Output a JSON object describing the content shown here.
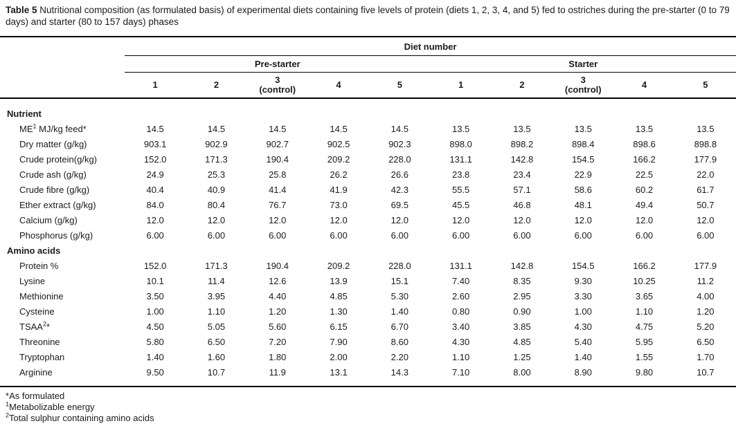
{
  "caption": {
    "label": "Table 5",
    "text": " Nutritional composition (as formulated basis) of experimental diets containing five levels of protein (diets 1, 2, 3, 4, and 5) fed to ostriches during the pre-starter (0 to 79 days) and starter (80 to 157 days) phases"
  },
  "table": {
    "top_header": "Diet number",
    "groups": [
      {
        "label": "Pre-starter",
        "span": 5
      },
      {
        "label": "Starter",
        "span": 5
      }
    ],
    "columns": [
      [
        "1"
      ],
      [
        "2"
      ],
      [
        "3",
        "(control)"
      ],
      [
        "4"
      ],
      [
        "5"
      ],
      [
        "1"
      ],
      [
        "2"
      ],
      [
        "3",
        "(control)"
      ],
      [
        "4"
      ],
      [
        "5"
      ]
    ],
    "rows": [
      {
        "type": "section",
        "parts": [
          {
            "t": "Nutrient"
          }
        ]
      },
      {
        "type": "data",
        "parts": [
          {
            "t": "ME"
          },
          {
            "s": "1"
          },
          {
            "t": " MJ/kg feed*"
          }
        ],
        "values": [
          "14.5",
          "14.5",
          "14.5",
          "14.5",
          "14.5",
          "13.5",
          "13.5",
          "13.5",
          "13.5",
          "13.5"
        ]
      },
      {
        "type": "data",
        "parts": [
          {
            "t": "Dry matter (g/kg)"
          }
        ],
        "values": [
          "903.1",
          "902.9",
          "902.7",
          "902.5",
          "902.3",
          "898.0",
          "898.2",
          "898.4",
          "898.6",
          "898.8"
        ]
      },
      {
        "type": "data",
        "parts": [
          {
            "t": "Crude protein(g/kg)"
          }
        ],
        "values": [
          "152.0",
          "171.3",
          "190.4",
          "209.2",
          "228.0",
          "131.1",
          "142.8",
          "154.5",
          "166.2",
          "177.9"
        ]
      },
      {
        "type": "data",
        "parts": [
          {
            "t": "Crude ash (g/kg)"
          }
        ],
        "values": [
          "24.9",
          "25.3",
          "25.8",
          "26.2",
          "26.6",
          "23.8",
          "23.4",
          "22.9",
          "22.5",
          "22.0"
        ]
      },
      {
        "type": "data",
        "parts": [
          {
            "t": "Crude fibre (g/kg)"
          }
        ],
        "values": [
          "40.4",
          "40.9",
          "41.4",
          "41.9",
          "42.3",
          "55.5",
          "57.1",
          "58.6",
          "60.2",
          "61.7"
        ]
      },
      {
        "type": "data",
        "parts": [
          {
            "t": "Ether extract (g/kg)"
          }
        ],
        "values": [
          "84.0",
          "80.4",
          "76.7",
          "73.0",
          "69.5",
          "45.5",
          "46.8",
          "48.1",
          "49.4",
          "50.7"
        ]
      },
      {
        "type": "data",
        "parts": [
          {
            "t": "Calcium (g/kg)"
          }
        ],
        "values": [
          "12.0",
          "12.0",
          "12.0",
          "12.0",
          "12.0",
          "12.0",
          "12.0",
          "12.0",
          "12.0",
          "12.0"
        ]
      },
      {
        "type": "data",
        "parts": [
          {
            "t": "Phosphorus (g/kg)"
          }
        ],
        "values": [
          "6.00",
          "6.00",
          "6.00",
          "6.00",
          "6.00",
          "6.00",
          "6.00",
          "6.00",
          "6.00",
          "6.00"
        ]
      },
      {
        "type": "section",
        "parts": [
          {
            "t": "Amino acids"
          }
        ]
      },
      {
        "type": "data",
        "parts": [
          {
            "t": "Protein %"
          }
        ],
        "values": [
          "152.0",
          "171.3",
          "190.4",
          "209.2",
          "228.0",
          "131.1",
          "142.8",
          "154.5",
          "166.2",
          "177.9"
        ]
      },
      {
        "type": "data",
        "parts": [
          {
            "t": "Lysine"
          }
        ],
        "values": [
          "10.1",
          "11.4",
          "12.6",
          "13.9",
          "15.1",
          "7.40",
          "8.35",
          "9.30",
          "10.25",
          "11.2"
        ]
      },
      {
        "type": "data",
        "parts": [
          {
            "t": "Methionine"
          }
        ],
        "values": [
          "3.50",
          "3.95",
          "4.40",
          "4.85",
          "5.30",
          "2.60",
          "2.95",
          "3.30",
          "3.65",
          "4.00"
        ]
      },
      {
        "type": "data",
        "parts": [
          {
            "t": "Cysteine"
          }
        ],
        "values": [
          "1.00",
          "1.10",
          "1.20",
          "1.30",
          "1.40",
          "0.80",
          "0.90",
          "1.00",
          "1.10",
          "1.20"
        ]
      },
      {
        "type": "data",
        "parts": [
          {
            "t": "TSAA"
          },
          {
            "s": "2"
          },
          {
            "t": "*"
          }
        ],
        "values": [
          "4.50",
          "5.05",
          "5.60",
          "6.15",
          "6.70",
          "3.40",
          "3.85",
          "4.30",
          "4.75",
          "5.20"
        ]
      },
      {
        "type": "data",
        "parts": [
          {
            "t": "Threonine"
          }
        ],
        "values": [
          "5.80",
          "6.50",
          "7.20",
          "7.90",
          "8.60",
          "4.30",
          "4.85",
          "5.40",
          "5.95",
          "6.50"
        ]
      },
      {
        "type": "data",
        "parts": [
          {
            "t": "Tryptophan"
          }
        ],
        "values": [
          "1.40",
          "1.60",
          "1.80",
          "2.00",
          "2.20",
          "1.10",
          "1.25",
          "1.40",
          "1.55",
          "1.70"
        ]
      },
      {
        "type": "data",
        "parts": [
          {
            "t": "Arginine"
          }
        ],
        "values": [
          "9.50",
          "10.7",
          "11.9",
          "13.1",
          "14.3",
          "7.10",
          "8.00",
          "8.90",
          "9.80",
          "10.7"
        ]
      }
    ]
  },
  "footnotes": [
    {
      "sup": "",
      "marker": "*",
      "text": "As formulated"
    },
    {
      "sup": "1",
      "marker": "",
      "text": "Metabolizable energy"
    },
    {
      "sup": "2",
      "marker": "",
      "text": "Total sulphur containing amino acids"
    }
  ]
}
